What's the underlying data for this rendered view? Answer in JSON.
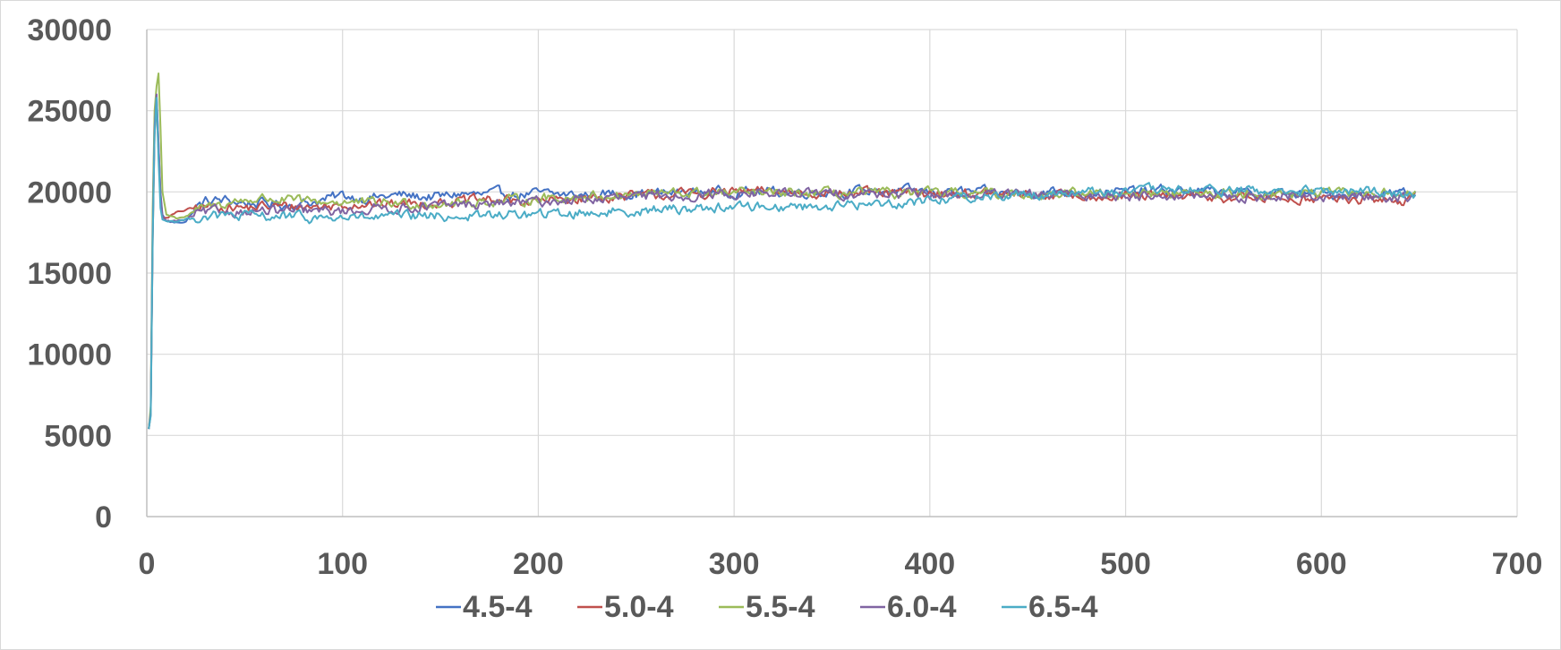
{
  "chart_data": {
    "type": "line",
    "title": "",
    "xlabel": "",
    "ylabel": "",
    "xlim": [
      0,
      700
    ],
    "ylim": [
      0,
      30000
    ],
    "x_ticks": [
      0,
      100,
      200,
      300,
      400,
      500,
      600,
      700
    ],
    "y_ticks": [
      0,
      5000,
      10000,
      15000,
      20000,
      25000,
      30000
    ],
    "grid": true,
    "legend_position": "bottom",
    "series": [
      {
        "name": "4.5-4",
        "color": "#4472c4",
        "points": [
          [
            1,
            5400
          ],
          [
            2,
            6500
          ],
          [
            3,
            18000
          ],
          [
            4,
            24500
          ],
          [
            5,
            26000
          ],
          [
            6,
            23000
          ],
          [
            7,
            20000
          ],
          [
            8,
            18600
          ],
          [
            10,
            18200
          ],
          [
            15,
            18100
          ],
          [
            20,
            18200
          ],
          [
            25,
            19000
          ],
          [
            30,
            19400
          ],
          [
            40,
            19500
          ],
          [
            50,
            19300
          ],
          [
            60,
            19300
          ],
          [
            70,
            19200
          ],
          [
            80,
            19300
          ],
          [
            90,
            19500
          ],
          [
            100,
            19800
          ],
          [
            110,
            19600
          ],
          [
            120,
            19700
          ],
          [
            130,
            19800
          ],
          [
            140,
            19700
          ],
          [
            150,
            19700
          ],
          [
            160,
            19900
          ],
          [
            170,
            19800
          ],
          [
            180,
            19900
          ],
          [
            190,
            19800
          ],
          [
            200,
            19900
          ],
          [
            220,
            19800
          ],
          [
            240,
            19900
          ],
          [
            260,
            19900
          ],
          [
            280,
            20000
          ],
          [
            300,
            20000
          ],
          [
            320,
            20000
          ],
          [
            340,
            20000
          ],
          [
            360,
            20000
          ],
          [
            380,
            20100
          ],
          [
            400,
            20000
          ],
          [
            420,
            20000
          ],
          [
            440,
            19900
          ],
          [
            460,
            20000
          ],
          [
            480,
            20000
          ],
          [
            500,
            20000
          ],
          [
            520,
            20100
          ],
          [
            540,
            20000
          ],
          [
            560,
            19900
          ],
          [
            580,
            19900
          ],
          [
            600,
            19800
          ],
          [
            620,
            19900
          ],
          [
            640,
            19900
          ],
          [
            648,
            19900
          ]
        ]
      },
      {
        "name": "5.0-4",
        "color": "#c0504d",
        "points": [
          [
            1,
            5400
          ],
          [
            2,
            6300
          ],
          [
            3,
            17000
          ],
          [
            4,
            23500
          ],
          [
            5,
            25500
          ],
          [
            6,
            22500
          ],
          [
            7,
            19500
          ],
          [
            8,
            18400
          ],
          [
            10,
            18400
          ],
          [
            15,
            18700
          ],
          [
            20,
            18900
          ],
          [
            25,
            19000
          ],
          [
            30,
            19100
          ],
          [
            40,
            19100
          ],
          [
            50,
            19000
          ],
          [
            60,
            19100
          ],
          [
            70,
            19100
          ],
          [
            80,
            19100
          ],
          [
            90,
            19100
          ],
          [
            100,
            19200
          ],
          [
            110,
            19300
          ],
          [
            120,
            19200
          ],
          [
            130,
            19300
          ],
          [
            140,
            19300
          ],
          [
            150,
            19400
          ],
          [
            160,
            19400
          ],
          [
            170,
            19500
          ],
          [
            180,
            19500
          ],
          [
            190,
            19400
          ],
          [
            200,
            19400
          ],
          [
            220,
            19600
          ],
          [
            240,
            19700
          ],
          [
            260,
            19800
          ],
          [
            280,
            19900
          ],
          [
            300,
            20000
          ],
          [
            320,
            20000
          ],
          [
            340,
            20000
          ],
          [
            360,
            19900
          ],
          [
            380,
            19900
          ],
          [
            400,
            19900
          ],
          [
            420,
            19900
          ],
          [
            440,
            19800
          ],
          [
            460,
            19800
          ],
          [
            480,
            19800
          ],
          [
            500,
            19700
          ],
          [
            520,
            19700
          ],
          [
            540,
            19700
          ],
          [
            560,
            19600
          ],
          [
            580,
            19600
          ],
          [
            600,
            19600
          ],
          [
            620,
            19500
          ],
          [
            640,
            19500
          ],
          [
            648,
            19500
          ]
        ]
      },
      {
        "name": "5.5-4",
        "color": "#9bbb59",
        "points": [
          [
            1,
            5400
          ],
          [
            2,
            6800
          ],
          [
            3,
            19000
          ],
          [
            4,
            25000
          ],
          [
            5,
            26500
          ],
          [
            6,
            27300
          ],
          [
            7,
            24000
          ],
          [
            8,
            20000
          ],
          [
            10,
            18600
          ],
          [
            15,
            18400
          ],
          [
            20,
            18500
          ],
          [
            25,
            18800
          ],
          [
            30,
            19000
          ],
          [
            40,
            19300
          ],
          [
            50,
            19500
          ],
          [
            60,
            19600
          ],
          [
            70,
            19500
          ],
          [
            80,
            19400
          ],
          [
            90,
            19400
          ],
          [
            100,
            19400
          ],
          [
            110,
            19300
          ],
          [
            120,
            19300
          ],
          [
            130,
            19300
          ],
          [
            140,
            19300
          ],
          [
            150,
            19300
          ],
          [
            160,
            19300
          ],
          [
            170,
            19400
          ],
          [
            180,
            19400
          ],
          [
            190,
            19500
          ],
          [
            200,
            19600
          ],
          [
            220,
            19700
          ],
          [
            240,
            19800
          ],
          [
            260,
            19900
          ],
          [
            280,
            19900
          ],
          [
            300,
            19900
          ],
          [
            320,
            19900
          ],
          [
            340,
            19900
          ],
          [
            360,
            19900
          ],
          [
            380,
            19900
          ],
          [
            400,
            19900
          ],
          [
            420,
            19900
          ],
          [
            440,
            19900
          ],
          [
            460,
            19900
          ],
          [
            480,
            19900
          ],
          [
            500,
            19900
          ],
          [
            520,
            19900
          ],
          [
            540,
            19900
          ],
          [
            560,
            19900
          ],
          [
            580,
            19900
          ],
          [
            600,
            19900
          ],
          [
            620,
            19900
          ],
          [
            640,
            19900
          ],
          [
            648,
            19900
          ]
        ]
      },
      {
        "name": "6.0-4",
        "color": "#8064a2",
        "points": [
          [
            1,
            5400
          ],
          [
            2,
            6400
          ],
          [
            3,
            17500
          ],
          [
            4,
            24000
          ],
          [
            5,
            26000
          ],
          [
            6,
            23000
          ],
          [
            7,
            19800
          ],
          [
            8,
            18500
          ],
          [
            10,
            18200
          ],
          [
            15,
            18200
          ],
          [
            20,
            18300
          ],
          [
            25,
            18600
          ],
          [
            30,
            18700
          ],
          [
            40,
            18800
          ],
          [
            50,
            18800
          ],
          [
            60,
            18800
          ],
          [
            70,
            18800
          ],
          [
            80,
            18800
          ],
          [
            90,
            18800
          ],
          [
            100,
            18800
          ],
          [
            110,
            18900
          ],
          [
            120,
            19000
          ],
          [
            130,
            19000
          ],
          [
            140,
            19100
          ],
          [
            150,
            19100
          ],
          [
            160,
            19200
          ],
          [
            170,
            19200
          ],
          [
            180,
            19300
          ],
          [
            190,
            19300
          ],
          [
            200,
            19400
          ],
          [
            220,
            19500
          ],
          [
            240,
            19600
          ],
          [
            260,
            19700
          ],
          [
            280,
            19800
          ],
          [
            300,
            19900
          ],
          [
            320,
            19900
          ],
          [
            340,
            19900
          ],
          [
            360,
            19900
          ],
          [
            380,
            19900
          ],
          [
            400,
            19800
          ],
          [
            420,
            19800
          ],
          [
            440,
            19800
          ],
          [
            460,
            19800
          ],
          [
            480,
            19800
          ],
          [
            500,
            19800
          ],
          [
            520,
            19800
          ],
          [
            540,
            19700
          ],
          [
            560,
            19700
          ],
          [
            580,
            19700
          ],
          [
            600,
            19700
          ],
          [
            620,
            19700
          ],
          [
            640,
            19700
          ],
          [
            648,
            19700
          ]
        ]
      },
      {
        "name": "6.5-4",
        "color": "#4bacc6",
        "points": [
          [
            1,
            5400
          ],
          [
            2,
            6200
          ],
          [
            3,
            17000
          ],
          [
            4,
            23500
          ],
          [
            5,
            25800
          ],
          [
            6,
            22000
          ],
          [
            7,
            19000
          ],
          [
            8,
            18300
          ],
          [
            10,
            18200
          ],
          [
            15,
            18200
          ],
          [
            20,
            18300
          ],
          [
            25,
            18400
          ],
          [
            30,
            18500
          ],
          [
            40,
            18500
          ],
          [
            50,
            18500
          ],
          [
            60,
            18500
          ],
          [
            70,
            18500
          ],
          [
            80,
            18400
          ],
          [
            90,
            18400
          ],
          [
            100,
            18400
          ],
          [
            110,
            18400
          ],
          [
            120,
            18400
          ],
          [
            130,
            18500
          ],
          [
            140,
            18500
          ],
          [
            150,
            18500
          ],
          [
            160,
            18500
          ],
          [
            170,
            18500
          ],
          [
            180,
            18600
          ],
          [
            190,
            18600
          ],
          [
            200,
            18600
          ],
          [
            220,
            18700
          ],
          [
            240,
            18800
          ],
          [
            260,
            18900
          ],
          [
            280,
            19000
          ],
          [
            300,
            19100
          ],
          [
            320,
            19100
          ],
          [
            340,
            19100
          ],
          [
            360,
            19200
          ],
          [
            380,
            19300
          ],
          [
            400,
            19500
          ],
          [
            420,
            19700
          ],
          [
            440,
            19800
          ],
          [
            460,
            19900
          ],
          [
            480,
            20000
          ],
          [
            500,
            20000
          ],
          [
            520,
            20100
          ],
          [
            540,
            20100
          ],
          [
            560,
            20100
          ],
          [
            580,
            20000
          ],
          [
            600,
            20000
          ],
          [
            620,
            20000
          ],
          [
            640,
            20000
          ],
          [
            648,
            19900
          ]
        ]
      }
    ]
  }
}
